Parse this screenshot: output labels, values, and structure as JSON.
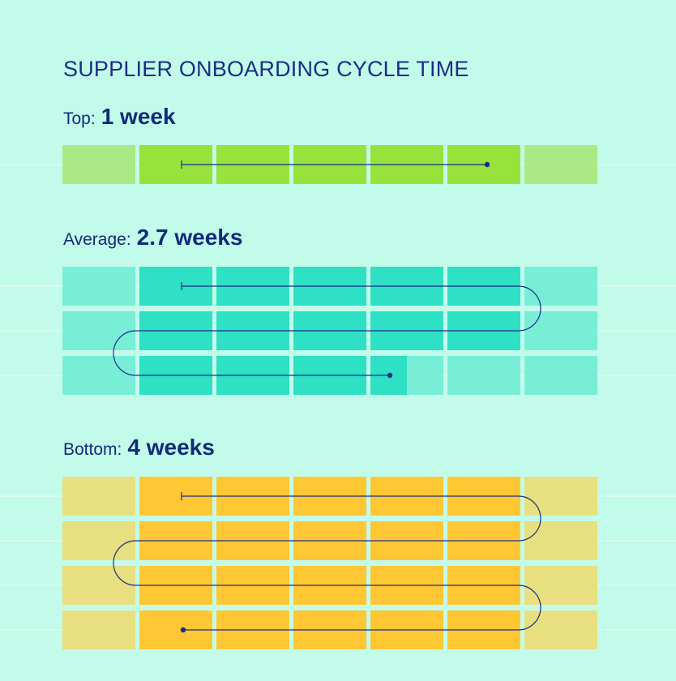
{
  "title": "SUPPLIER ONBOARDING CYCLE TIME",
  "chart_data": {
    "type": "bar",
    "title": "SUPPLIER ONBOARDING CYCLE TIME",
    "unit": "weeks",
    "days_per_week": 5,
    "tiers": [
      {
        "name": "Top",
        "label": "Top:",
        "value_text": "1 week",
        "value": 1,
        "color": "#97e23b",
        "light": "#abe985",
        "rows": 1
      },
      {
        "name": "Average",
        "label": "Average:",
        "value_text": "2.7 weeks",
        "value": 2.7,
        "color": "#2ee0c4",
        "light": "#78eed7",
        "rows": 3
      },
      {
        "name": "Bottom",
        "label": "Bottom:",
        "value_text": "4 weeks",
        "value": 4,
        "color": "#ffc734",
        "light": "#e8df80",
        "rows": 4
      }
    ],
    "line_color": "#1a2d86"
  }
}
